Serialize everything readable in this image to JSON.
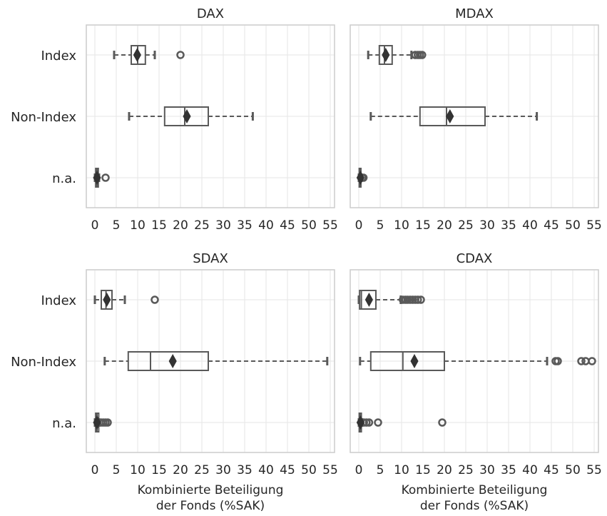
{
  "chart_data": [
    {
      "type": "box",
      "title": "DAX",
      "categories": [
        "Index",
        "Non-Index",
        "n.a."
      ],
      "xlim": [
        -2,
        56
      ],
      "xticks": [
        0,
        5,
        10,
        15,
        20,
        25,
        30,
        35,
        40,
        45,
        50,
        55
      ],
      "xlabel": "",
      "grid": true,
      "boxes": [
        {
          "category": "Index",
          "whisker_low": 4.5,
          "q1": 8.5,
          "median": 10.0,
          "q3": 11.8,
          "whisker_high": 14.0,
          "mean": 9.9,
          "outliers": [
            20.0
          ]
        },
        {
          "category": "Non-Index",
          "whisker_low": 8.0,
          "q1": 16.3,
          "median": 21.0,
          "q3": 26.5,
          "whisker_high": 36.9,
          "mean": 21.5,
          "outliers": []
        },
        {
          "category": "n.a.",
          "whisker_low": 0.0,
          "q1": 0.2,
          "median": 0.5,
          "q3": 0.8,
          "whisker_high": 1.0,
          "mean": 0.5,
          "outliers": [
            2.5
          ]
        }
      ]
    },
    {
      "type": "box",
      "title": "MDAX",
      "categories": [
        "Index",
        "Non-Index",
        "n.a."
      ],
      "xlim": [
        -2,
        56
      ],
      "xticks": [
        0,
        5,
        10,
        15,
        20,
        25,
        30,
        35,
        40,
        45,
        50,
        55
      ],
      "xlabel": "",
      "grid": true,
      "boxes": [
        {
          "category": "Index",
          "whisker_low": 2.2,
          "q1": 4.8,
          "median": 6.0,
          "q3": 7.8,
          "whisker_high": 12.3,
          "mean": 6.3,
          "outliers": [
            13.2,
            13.8,
            14.3,
            14.8
          ]
        },
        {
          "category": "Non-Index",
          "whisker_low": 2.8,
          "q1": 14.3,
          "median": 20.5,
          "q3": 29.5,
          "whisker_high": 41.6,
          "mean": 21.3,
          "outliers": []
        },
        {
          "category": "n.a.",
          "whisker_low": 0.0,
          "q1": 0.1,
          "median": 0.3,
          "q3": 0.5,
          "whisker_high": 0.6,
          "mean": 0.4,
          "outliers": [
            0.8,
            1.1
          ]
        }
      ]
    },
    {
      "type": "box",
      "title": "SDAX",
      "categories": [
        "Index",
        "Non-Index",
        "n.a."
      ],
      "xlim": [
        -2,
        56
      ],
      "xticks": [
        0,
        5,
        10,
        15,
        20,
        25,
        30,
        35,
        40,
        45,
        50,
        55
      ],
      "xlabel": "Kombinierte Beteiligung\nder Fonds (%SAK)",
      "grid": true,
      "boxes": [
        {
          "category": "Index",
          "whisker_low": 0.0,
          "q1": 1.5,
          "median": 2.6,
          "q3": 4.0,
          "whisker_high": 7.0,
          "mean": 2.8,
          "outliers": [
            14.0
          ]
        },
        {
          "category": "Non-Index",
          "whisker_low": 2.3,
          "q1": 7.8,
          "median": 13.0,
          "q3": 26.5,
          "whisker_high": 54.3,
          "mean": 18.2,
          "outliers": []
        },
        {
          "category": "n.a.",
          "whisker_low": 0.0,
          "q1": 0.2,
          "median": 0.5,
          "q3": 0.9,
          "whisker_high": 1.0,
          "mean": 0.5,
          "outliers": [
            1.5,
            2.0,
            2.5,
            3.0
          ]
        }
      ]
    },
    {
      "type": "box",
      "title": "CDAX",
      "categories": [
        "Index",
        "Non-Index",
        "n.a."
      ],
      "xlim": [
        -2,
        56
      ],
      "xticks": [
        0,
        5,
        10,
        15,
        20,
        25,
        30,
        35,
        40,
        45,
        50,
        55
      ],
      "xlabel": "Kombinierte Beteiligung\nder Fonds (%SAK)",
      "grid": true,
      "boxes": [
        {
          "category": "Index",
          "whisker_low": 0.0,
          "q1": 0.2,
          "median": 0.6,
          "q3": 4.0,
          "whisker_high": 9.8,
          "mean": 2.4,
          "outliers": [
            10.3,
            10.9,
            11.4,
            12.0,
            12.6,
            13.2,
            13.8,
            14.5
          ]
        },
        {
          "category": "Non-Index",
          "whisker_low": 0.3,
          "q1": 2.8,
          "median": 10.3,
          "q3": 20.0,
          "whisker_high": 44.0,
          "mean": 13.0,
          "outliers": [
            46.0,
            46.5,
            52.0,
            53.0,
            54.5
          ]
        },
        {
          "category": "n.a.",
          "whisker_low": 0.0,
          "q1": 0.1,
          "median": 0.3,
          "q3": 0.6,
          "whisker_high": 0.8,
          "mean": 0.4,
          "outliers": [
            1.2,
            1.8,
            2.4,
            4.5,
            19.5
          ]
        }
      ]
    }
  ]
}
